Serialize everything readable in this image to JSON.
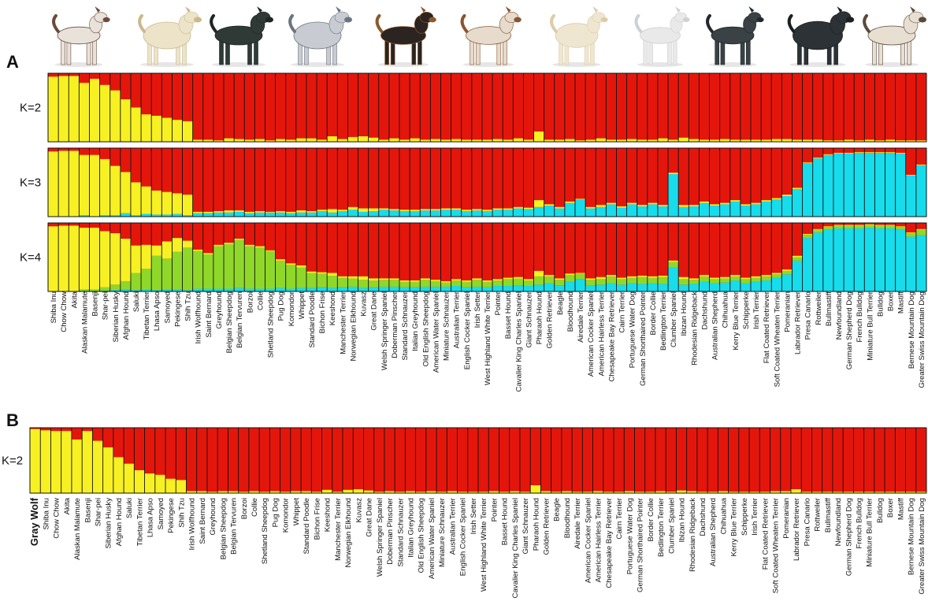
{
  "chart_data": [
    {
      "panel": "A",
      "type": "stacked-bar",
      "title": "",
      "colors": {
        "ancient": "#f7f123",
        "modern": "#e4160c",
        "guard": "#17dcec",
        "hunting": "#8fd82a",
        "separator": "#111111"
      },
      "breeds": [
        "Shiba Inu",
        "Chow Chow",
        "Akita",
        "Alaskan Malamute",
        "Basenji",
        "Shar-pei",
        "Siberian Husky",
        "Afghan Hound",
        "Saluki",
        "Tibetan Terrier",
        "Lhasa Apso",
        "Samoyed",
        "Pekingese",
        "Shih Tzu",
        "Irish Wolfhound",
        "Saint Bernard",
        "Greyhound",
        "Belgian Sheepdog",
        "Belgian Tervuren",
        "Borzoi",
        "Collie",
        "Shetland Sheepdog",
        "Pug Dog",
        "Komondor",
        "Whippet",
        "Standard Poodle",
        "Bichon Frise",
        "Keeshond",
        "Manchester Terrier",
        "Norwegian Elkhound",
        "Kuvasz",
        "Great Dane",
        "Welsh Springer Spaniel",
        "Doberman Pinscher",
        "Standard Schnauzer",
        "Italian Greyhound",
        "Old English Sheepdog",
        "American Water Spaniel",
        "Miniature Schnauzer",
        "Australian Terrier",
        "English Cocker Spaniel",
        "Irish Setter",
        "West Highland White Terrier",
        "Pointer",
        "Basset Hound",
        "Cavalier King Charles Spaniel",
        "Giant Schnauzer",
        "Pharaoh Hound",
        "Golden Retriever",
        "Beagle",
        "Bloodhound",
        "Airedale Terrier",
        "American Cocker Spaniel",
        "American Hairless Terrier",
        "Chesapeake Bay Retriever",
        "Cairn Terrier",
        "Portuguese Water Dog",
        "German Shorthaired Pointer",
        "Border Collie",
        "Bedlington Terrier",
        "Clumber Spaniel",
        "Ibizan Hound",
        "Rhodesian Ridgeback",
        "Dachshund",
        "Australian Shepherd",
        "Chihuahua",
        "Kerry Blue Terrier",
        "Schipperke",
        "Irish Terrier",
        "Flat Coated Retriever",
        "Soft Coated Wheaten Terrier",
        "Pomeranian",
        "Labrador Retriever",
        "Presa Canario",
        "Rottweiler",
        "Bullmastiff",
        "Newfoundland",
        "German Shepherd Dog",
        "French Bulldog",
        "Miniature Bull Terrier",
        "Bulldog",
        "Boxer",
        "Mastiff",
        "Bernese Mountain Dog",
        "Greater Swiss Mountain Dog"
      ],
      "rows": [
        {
          "label": "K=2",
          "clusters": 2,
          "ancient": [
            0.95,
            0.96,
            0.96,
            0.86,
            0.92,
            0.83,
            0.75,
            0.62,
            0.5,
            0.4,
            0.38,
            0.35,
            0.32,
            0.3,
            0.03,
            0.03,
            0.02,
            0.05,
            0.04,
            0.03,
            0.04,
            0.02,
            0.04,
            0.03,
            0.05,
            0.05,
            0.03,
            0.08,
            0.04,
            0.07,
            0.08,
            0.06,
            0.03,
            0.05,
            0.03,
            0.05,
            0.03,
            0.04,
            0.03,
            0.04,
            0.03,
            0.03,
            0.03,
            0.04,
            0.03,
            0.05,
            0.03,
            0.15,
            0.03,
            0.03,
            0.04,
            0.02,
            0.03,
            0.05,
            0.03,
            0.03,
            0.04,
            0.03,
            0.03,
            0.05,
            0.03,
            0.06,
            0.04,
            0.03,
            0.03,
            0.04,
            0.03,
            0.03,
            0.03,
            0.03,
            0.04,
            0.04,
            0.03,
            0.03,
            0.03,
            0.02,
            0.02,
            0.03,
            0.02,
            0.03,
            0.02,
            0.03,
            0.02,
            0.02,
            0.02
          ],
          "guard": null,
          "hunting": null
        },
        {
          "label": "K=3",
          "clusters": 3,
          "ancient": [
            0.95,
            0.96,
            0.96,
            0.88,
            0.9,
            0.82,
            0.72,
            0.6,
            0.48,
            0.4,
            0.35,
            0.33,
            0.3,
            0.3,
            0.02,
            0.02,
            0.02,
            0.03,
            0.02,
            0.02,
            0.02,
            0.01,
            0.02,
            0.02,
            0.03,
            0.02,
            0.02,
            0.05,
            0.02,
            0.04,
            0.05,
            0.04,
            0.02,
            0.02,
            0.02,
            0.02,
            0.02,
            0.02,
            0.02,
            0.02,
            0.02,
            0.02,
            0.02,
            0.02,
            0.02,
            0.02,
            0.02,
            0.1,
            0.02,
            0.02,
            0.02,
            0.01,
            0.02,
            0.03,
            0.02,
            0.02,
            0.02,
            0.02,
            0.02,
            0.02,
            0.02,
            0.03,
            0.02,
            0.02,
            0.02,
            0.02,
            0.02,
            0.02,
            0.02,
            0.02,
            0.02,
            0.02,
            0.02,
            0.01,
            0.01,
            0.01,
            0.01,
            0.01,
            0.01,
            0.01,
            0.01,
            0.01,
            0.01,
            0.01,
            0.01
          ],
          "guard": [
            0.0,
            0.0,
            0.0,
            0.02,
            0.0,
            0.02,
            0.02,
            0.05,
            0.02,
            0.04,
            0.03,
            0.03,
            0.04,
            0.02,
            0.05,
            0.05,
            0.06,
            0.06,
            0.07,
            0.05,
            0.06,
            0.06,
            0.06,
            0.05,
            0.06,
            0.06,
            0.08,
            0.06,
            0.08,
            0.1,
            0.07,
            0.08,
            0.1,
            0.09,
            0.08,
            0.08,
            0.09,
            0.09,
            0.1,
            0.1,
            0.08,
            0.09,
            0.08,
            0.1,
            0.1,
            0.12,
            0.11,
            0.14,
            0.16,
            0.12,
            0.2,
            0.25,
            0.12,
            0.14,
            0.18,
            0.13,
            0.18,
            0.15,
            0.18,
            0.15,
            0.62,
            0.14,
            0.15,
            0.2,
            0.16,
            0.18,
            0.22,
            0.16,
            0.18,
            0.22,
            0.25,
            0.3,
            0.4,
            0.78,
            0.85,
            0.9,
            0.92,
            0.92,
            0.93,
            0.93,
            0.93,
            0.93,
            0.92,
            0.6,
            0.75
          ],
          "hunting": null
        },
        {
          "label": "K=4",
          "clusters": 4,
          "ancient": [
            0.95,
            0.96,
            0.96,
            0.9,
            0.9,
            0.82,
            0.75,
            0.62,
            0.4,
            0.35,
            0.15,
            0.25,
            0.2,
            0.1,
            0.02,
            0.02,
            0.02,
            0.02,
            0.02,
            0.02,
            0.02,
            0.01,
            0.02,
            0.02,
            0.03,
            0.02,
            0.02,
            0.04,
            0.02,
            0.03,
            0.05,
            0.03,
            0.02,
            0.02,
            0.02,
            0.02,
            0.02,
            0.02,
            0.02,
            0.02,
            0.02,
            0.02,
            0.02,
            0.02,
            0.02,
            0.02,
            0.02,
            0.08,
            0.02,
            0.02,
            0.02,
            0.01,
            0.02,
            0.03,
            0.02,
            0.02,
            0.02,
            0.02,
            0.02,
            0.02,
            0.02,
            0.03,
            0.02,
            0.02,
            0.02,
            0.02,
            0.02,
            0.02,
            0.02,
            0.02,
            0.02,
            0.02,
            0.02,
            0.01,
            0.01,
            0.01,
            0.01,
            0.01,
            0.01,
            0.01,
            0.01,
            0.01,
            0.01,
            0.01,
            0.01
          ],
          "guard": [
            0.0,
            0.0,
            0.0,
            0.01,
            0.0,
            0.01,
            0.02,
            0.03,
            0.02,
            0.03,
            0.02,
            0.03,
            0.03,
            0.02,
            0.04,
            0.04,
            0.04,
            0.04,
            0.05,
            0.04,
            0.04,
            0.04,
            0.05,
            0.04,
            0.05,
            0.05,
            0.06,
            0.05,
            0.06,
            0.07,
            0.05,
            0.06,
            0.07,
            0.07,
            0.06,
            0.06,
            0.07,
            0.07,
            0.07,
            0.08,
            0.06,
            0.07,
            0.06,
            0.08,
            0.08,
            0.09,
            0.08,
            0.1,
            0.12,
            0.09,
            0.14,
            0.18,
            0.09,
            0.1,
            0.12,
            0.1,
            0.12,
            0.11,
            0.12,
            0.11,
            0.35,
            0.1,
            0.11,
            0.14,
            0.12,
            0.13,
            0.16,
            0.12,
            0.14,
            0.16,
            0.2,
            0.25,
            0.45,
            0.78,
            0.86,
            0.9,
            0.92,
            0.92,
            0.92,
            0.93,
            0.92,
            0.92,
            0.9,
            0.8,
            0.82
          ],
          "hunting": [
            0.0,
            0.0,
            0.0,
            0.02,
            0.03,
            0.05,
            0.08,
            0.12,
            0.25,
            0.3,
            0.5,
            0.45,
            0.55,
            0.62,
            0.55,
            0.5,
            0.62,
            0.65,
            0.7,
            0.62,
            0.6,
            0.55,
            0.4,
            0.35,
            0.3,
            0.22,
            0.2,
            0.18,
            0.14,
            0.12,
            0.12,
            0.1,
            0.1,
            0.1,
            0.08,
            0.08,
            0.1,
            0.08,
            0.06,
            0.08,
            0.08,
            0.1,
            0.08,
            0.08,
            0.1,
            0.1,
            0.08,
            0.12,
            0.1,
            0.08,
            0.1,
            0.08,
            0.08,
            0.08,
            0.1,
            0.08,
            0.08,
            0.1,
            0.08,
            0.1,
            0.08,
            0.08,
            0.06,
            0.08,
            0.06,
            0.06,
            0.06,
            0.06,
            0.06,
            0.06,
            0.05,
            0.05,
            0.05,
            0.05,
            0.04,
            0.04,
            0.04,
            0.04,
            0.04,
            0.04,
            0.04,
            0.04,
            0.04,
            0.05,
            0.08
          ]
        }
      ]
    },
    {
      "panel": "B",
      "type": "stacked-bar",
      "breeds": [
        "Gray Wolf",
        "Shiba Inu",
        "Chow Chow",
        "Akita",
        "Alaskan Malamute",
        "Basenji",
        "Shar-pei",
        "Siberian Husky",
        "Afghan Hound",
        "Saluki",
        "Tibetan Terrier",
        "Lhasa Apso",
        "Samoyed",
        "Pekingese",
        "Shih Tzu",
        "Irish Wolfhound",
        "Saint Bernard",
        "Greyhound",
        "Belgian Sheepdog",
        "Belgian Tervuren",
        "Borzoi",
        "Collie",
        "Shetland Sheepdog",
        "Pug Dog",
        "Komondor",
        "Whippet",
        "Standard Poodle",
        "Bichon Frise",
        "Keeshond",
        "Manchester Terrier",
        "Norwegian Elkhound",
        "Kuvasz",
        "Great Dane",
        "Welsh Springer Spaniel",
        "Doberman Pinscher",
        "Standard Schnauzer",
        "Italian Greyhound",
        "Old English Sheepdog",
        "American Water Spaniel",
        "Miniature Schnauzer",
        "Australian Terrier",
        "English Cocker Spaniel",
        "Irish Setter",
        "West Highland White Terrier",
        "Pointer",
        "Basset Hound",
        "Cavalier King Charles Spaniel",
        "Giant Schnauzer",
        "Pharaoh Hound",
        "Golden Retriever",
        "Beagle",
        "Bloodhound",
        "Airedale Terrier",
        "American Cocker Spaniel",
        "American Hairless Terrier",
        "Chesapeake Bay Retriever",
        "Cairn Terrier",
        "Portuguese Water Dog",
        "German Shorthaired Pointer",
        "Border Collie",
        "Bedlington Terrier",
        "Clumber Spaniel",
        "Ibizan Hound",
        "Rhodesian Ridgeback",
        "Dachshund",
        "Australian Shepherd",
        "Chihuahua",
        "Kerry Blue Terrier",
        "Schipperke",
        "Irish Terrier",
        "Flat Coated Retriever",
        "Soft Coated Wheaten Terrier",
        "Pomeranian",
        "Labrador Retriever",
        "Presa Canario",
        "Rottweiler",
        "Bullmastiff",
        "Newfoundland",
        "German Shepherd Dog",
        "French Bulldog",
        "Miniature Bull Terrier",
        "Bulldog",
        "Boxer",
        "Mastiff",
        "Bernese Mountain Dog",
        "Greater Swiss Mountain Dog"
      ],
      "rows": [
        {
          "label": "K=2",
          "clusters": 2,
          "ancient": [
            0.98,
            0.96,
            0.95,
            0.95,
            0.82,
            0.95,
            0.8,
            0.7,
            0.55,
            0.45,
            0.35,
            0.3,
            0.28,
            0.22,
            0.2,
            0.03,
            0.03,
            0.02,
            0.03,
            0.03,
            0.02,
            0.03,
            0.02,
            0.03,
            0.02,
            0.03,
            0.03,
            0.02,
            0.05,
            0.02,
            0.05,
            0.06,
            0.04,
            0.02,
            0.03,
            0.02,
            0.03,
            0.02,
            0.03,
            0.02,
            0.03,
            0.02,
            0.02,
            0.02,
            0.03,
            0.02,
            0.03,
            0.02,
            0.12,
            0.03,
            0.02,
            0.03,
            0.02,
            0.02,
            0.03,
            0.02,
            0.02,
            0.03,
            0.02,
            0.02,
            0.03,
            0.02,
            0.04,
            0.03,
            0.02,
            0.02,
            0.03,
            0.02,
            0.02,
            0.02,
            0.02,
            0.03,
            0.03,
            0.06,
            0.02,
            0.02,
            0.02,
            0.02,
            0.02,
            0.02,
            0.02,
            0.02,
            0.02,
            0.02,
            0.02,
            0.02
          ]
        }
      ]
    }
  ],
  "panels": {
    "a_letter": "A",
    "b_letter": "B"
  },
  "icons": [
    "akita-dog-icon",
    "pekingese-dog-icon",
    "belgian-sheepdog-icon",
    "collie-dog-icon",
    "doberman-dog-icon",
    "basset-hound-icon",
    "cocker-spaniel-icon",
    "bedlington-terrier-icon",
    "flat-coated-retriever-icon",
    "newfoundland-dog-icon",
    "mastiff-dog-icon"
  ]
}
